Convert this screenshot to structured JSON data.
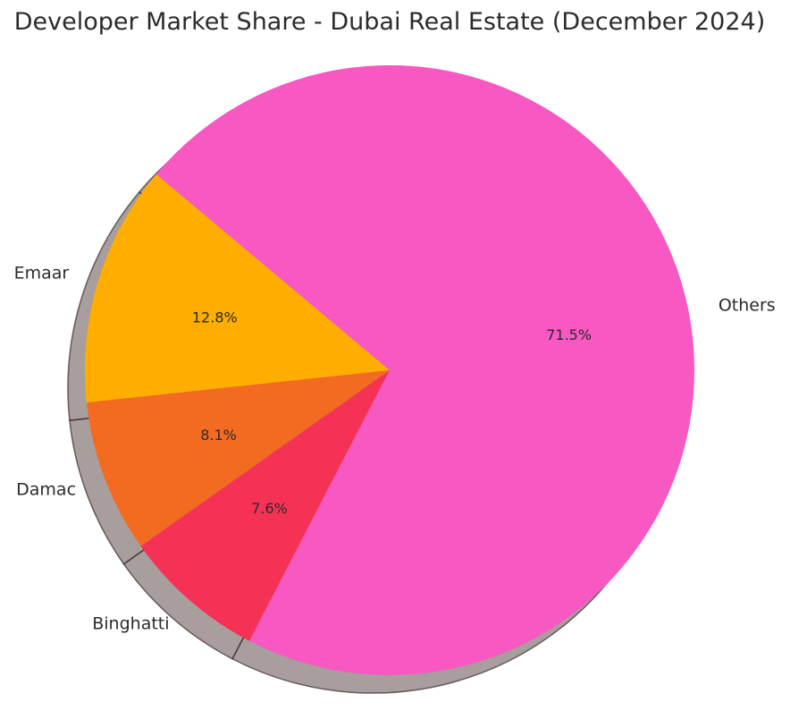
{
  "chart_data": {
    "type": "pie",
    "title": "Developer Market Share - Dubai Real Estate (December 2024)",
    "categories": [
      "Emaar",
      "Damac",
      "Binghatti",
      "Others"
    ],
    "values": [
      12.8,
      8.1,
      7.6,
      71.5
    ],
    "percent_labels": [
      "12.8%",
      "8.1%",
      "7.6%",
      "71.5%"
    ],
    "colors": [
      "#FFAE00",
      "#F26B21",
      "#F53255",
      "#F758C2"
    ],
    "start_angle_deg": 140,
    "direction": "counterclockwise",
    "shadow": true
  }
}
